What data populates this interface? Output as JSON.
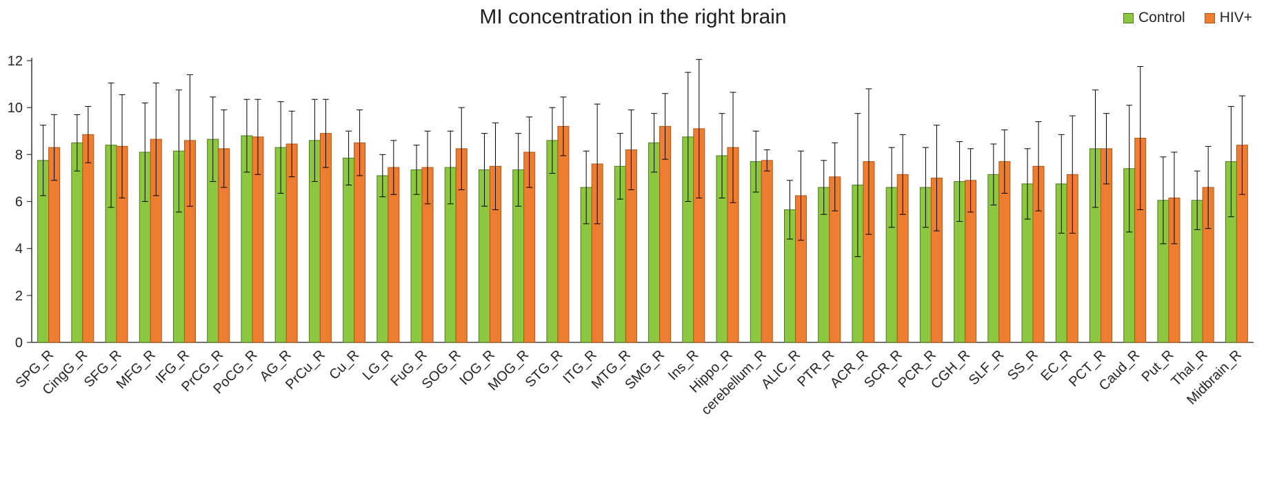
{
  "chart": {
    "title": "MI concentration in the right brain",
    "legend_position": "top-right"
  },
  "chart_data": {
    "type": "bar",
    "title": "MI concentration in the right brain",
    "xlabel": "",
    "ylabel": "",
    "ylim": [
      0,
      12
    ],
    "yticks": [
      0,
      2,
      4,
      6,
      8,
      10,
      12
    ],
    "grid": false,
    "error_bars": true,
    "legend_position": "top-right",
    "categories": [
      "SPG_R",
      "CingG_R",
      "SFG_R",
      "MFG_R",
      "IFG_R",
      "PrCG_R",
      "PoCG_R",
      "AG_R",
      "PrCu_R",
      "Cu_R",
      "LG_R",
      "FuG_R",
      "SOG_R",
      "IOG_R",
      "MOG_R",
      "STG_R",
      "ITG_R",
      "MTG_R",
      "SMG_R",
      "Ins_R",
      "Hippo_R",
      "cerebellum_R",
      "ALIC_R",
      "PTR_R",
      "ACR_R",
      "SCR_R",
      "PCR_R",
      "CGH_R",
      "SLF_R",
      "SS_R",
      "EC_R",
      "PCT_R",
      "Caud_R",
      "Put_R",
      "Thal_R",
      "Midbrain_R"
    ],
    "series": [
      {
        "name": "Control",
        "color": "#8dc63f",
        "stroke": "#4e7a1f",
        "values": [
          7.75,
          8.5,
          8.4,
          8.1,
          8.15,
          8.65,
          8.8,
          8.3,
          8.6,
          7.85,
          7.1,
          7.35,
          7.45,
          7.35,
          7.35,
          8.6,
          6.6,
          7.5,
          8.5,
          8.75,
          7.95,
          7.7,
          5.65,
          6.6,
          6.7,
          6.6,
          6.6,
          6.85,
          7.15,
          6.75,
          6.75,
          8.25,
          7.4,
          6.05,
          6.05,
          7.7
        ],
        "errors": [
          1.5,
          1.2,
          2.65,
          2.1,
          2.6,
          1.8,
          1.55,
          1.95,
          1.75,
          1.15,
          0.9,
          1.05,
          1.55,
          1.55,
          1.55,
          1.4,
          1.55,
          1.4,
          1.25,
          2.75,
          1.8,
          1.3,
          1.25,
          1.15,
          3.05,
          1.7,
          1.7,
          1.7,
          1.3,
          1.5,
          2.1,
          2.5,
          2.7,
          1.85,
          1.25,
          2.35
        ]
      },
      {
        "name": "HIV+",
        "color": "#ed7d31",
        "stroke": "#b35414",
        "values": [
          8.3,
          8.85,
          8.35,
          8.65,
          8.6,
          8.25,
          8.75,
          8.45,
          8.9,
          8.5,
          7.45,
          7.45,
          8.25,
          7.5,
          8.1,
          9.2,
          7.6,
          8.2,
          9.2,
          9.1,
          8.3,
          7.75,
          6.25,
          7.05,
          7.7,
          7.15,
          7.0,
          6.9,
          7.7,
          7.5,
          7.15,
          8.25,
          8.7,
          6.15,
          6.6,
          8.4
        ],
        "errors": [
          1.4,
          1.2,
          2.2,
          2.4,
          2.8,
          1.65,
          1.6,
          1.4,
          1.45,
          1.4,
          1.15,
          1.55,
          1.75,
          1.85,
          1.5,
          1.25,
          2.55,
          1.7,
          1.4,
          2.95,
          2.35,
          0.45,
          1.9,
          1.45,
          3.1,
          1.7,
          2.25,
          1.35,
          1.35,
          1.9,
          2.5,
          1.5,
          3.05,
          1.95,
          1.75,
          2.1
        ]
      }
    ],
    "axis_color": "#404040",
    "tick_label_color": "#262626",
    "error_bar_color": "#000000"
  }
}
